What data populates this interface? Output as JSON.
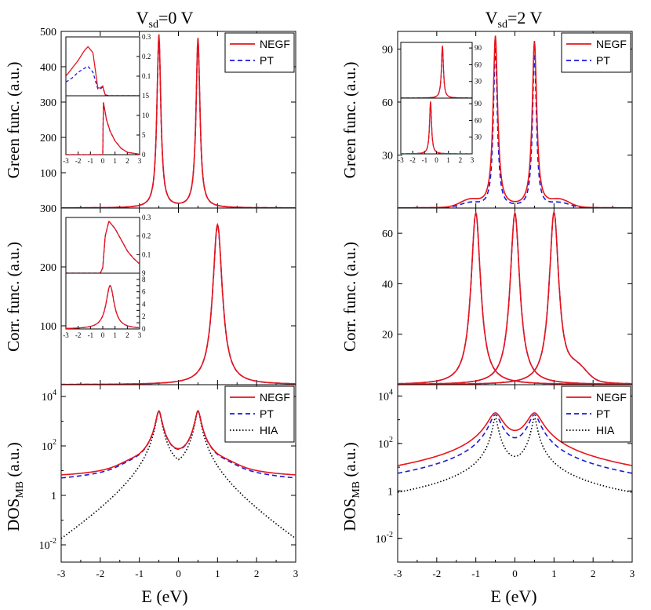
{
  "column_titles": [
    {
      "main": "V",
      "sub": "sd",
      "rest": "=0 V"
    },
    {
      "main": "V",
      "sub": "sd",
      "rest": "=2 V"
    }
  ],
  "xlabel": "E (eV)",
  "ylabels": {
    "green": "Green func. (a.u.)",
    "corr": "Corr. func. (a.u.)",
    "dos_main": "DOS",
    "dos_sub": "MB",
    "dos_rest": " (a.u.)"
  },
  "colors": {
    "NEGF": "#e8141b",
    "PT": "#1a1adb",
    "HIA": "#000000"
  },
  "chart_data": [
    {
      "id": "green-vsd0",
      "type": "line",
      "xlim": [
        -3,
        3
      ],
      "ylim": [
        0,
        500
      ],
      "xticks": [
        -3,
        -2,
        -1,
        0,
        1,
        2,
        3
      ],
      "yticks": [
        100,
        200,
        300,
        400,
        500
      ],
      "legend": [
        "NEGF",
        "PT"
      ],
      "legend_position": "top-right",
      "series": [
        {
          "name": "NEGF",
          "peaks": [
            {
              "x0": -0.5,
              "gamma": 0.06,
              "amp": 490
            },
            {
              "x0": 0.5,
              "gamma": 0.06,
              "amp": 480
            }
          ]
        },
        {
          "name": "PT",
          "peaks": [
            {
              "x0": -0.5,
              "gamma": 0.06,
              "amp": 485
            },
            {
              "x0": 0.5,
              "gamma": 0.06,
              "amp": 476
            }
          ]
        }
      ],
      "insets": [
        {
          "position": "top",
          "xlim": [
            -3,
            3
          ],
          "ylim": [
            0,
            0.3
          ],
          "yticks": [
            0.1,
            0.2,
            0.3
          ],
          "yticklabels": [
            "0.1",
            "0.2",
            "0.3"
          ],
          "series": [
            {
              "name": "NEGF",
              "x": [
                -3,
                -2.5,
                -2,
                -1.5,
                -1.2,
                -0.8,
                -0.4,
                -0.2,
                0,
                0.2,
                0.5,
                1,
                2,
                3
              ],
              "y": [
                0.1,
                0.14,
                0.18,
                0.23,
                0.25,
                0.22,
                0.04,
                0.04,
                0.05,
                0.005,
                0,
                0,
                0,
                0
              ]
            },
            {
              "name": "PT",
              "x": [
                -3,
                -2.5,
                -2,
                -1.5,
                -1.2,
                -0.8,
                -0.4,
                -0.2,
                0,
                0.2,
                0.5,
                1,
                2,
                3
              ],
              "y": [
                0.07,
                0.09,
                0.12,
                0.14,
                0.15,
                0.12,
                0.035,
                0.035,
                0.045,
                0.005,
                0,
                0,
                0,
                0
              ]
            }
          ]
        },
        {
          "position": "bottom",
          "xlim": [
            -3,
            3
          ],
          "ylim": [
            0,
            15
          ],
          "yticks": [
            0,
            5,
            10,
            15
          ],
          "yticklabels": [
            "0",
            "5",
            "10",
            "15"
          ],
          "xticks": [
            -3,
            -2,
            -1,
            0,
            1,
            2,
            3
          ],
          "xticklabels": [
            "-3",
            "-2",
            "-1",
            "0",
            "1",
            "2",
            "3"
          ],
          "series": [
            {
              "name": "NEGF",
              "x": [
                -3,
                -0.1,
                0,
                0.05,
                0.3,
                0.6,
                1,
                1.5,
                2,
                3
              ],
              "y": [
                0,
                0,
                0,
                13.5,
                9,
                6,
                3.5,
                1.6,
                0.6,
                0.1
              ]
            },
            {
              "name": "PT",
              "x": [
                -3,
                -0.1,
                0,
                0.05,
                0.3,
                0.6,
                1,
                1.5,
                2,
                3
              ],
              "y": [
                0,
                0,
                0,
                13.4,
                8.9,
                5.9,
                3.5,
                1.6,
                0.6,
                0.1
              ]
            }
          ]
        }
      ]
    },
    {
      "id": "green-vsd2",
      "type": "line",
      "xlim": [
        -3,
        3
      ],
      "ylim": [
        0,
        100
      ],
      "xticks": [
        -3,
        -2,
        -1,
        0,
        1,
        2,
        3
      ],
      "yticks": [
        30,
        60,
        90
      ],
      "legend": [
        "NEGF",
        "PT"
      ],
      "legend_position": "top-right",
      "series": [
        {
          "name": "NEGF",
          "peaks": [
            {
              "x0": -0.5,
              "gamma": 0.07,
              "amp": 97
            },
            {
              "x0": 0.5,
              "gamma": 0.07,
              "amp": 94
            }
          ],
          "shoulders": [
            {
              "x0": -1.15,
              "w": 0.35,
              "amp": 4
            },
            {
              "x0": 1.15,
              "w": 0.35,
              "amp": 4
            }
          ]
        },
        {
          "name": "PT",
          "peaks": [
            {
              "x0": -0.5,
              "gamma": 0.06,
              "amp": 91
            },
            {
              "x0": 0.5,
              "gamma": 0.06,
              "amp": 87
            }
          ],
          "shoulders": [
            {
              "x0": -1.15,
              "w": 0.35,
              "amp": 2.5
            },
            {
              "x0": 1.15,
              "w": 0.35,
              "amp": 2.5
            }
          ]
        }
      ],
      "insets": [
        {
          "position": "top",
          "xlim": [
            -3,
            3
          ],
          "ylim": [
            0,
            100
          ],
          "yticks": [
            30,
            60,
            90
          ],
          "yticklabels": [
            "30",
            "60",
            "90"
          ],
          "series": [
            {
              "name": "NEGF",
              "peaks": [
                {
                  "x0": 0.5,
                  "gamma": 0.1,
                  "amp": 95
                }
              ]
            },
            {
              "name": "PT",
              "peaks": [
                {
                  "x0": 0.5,
                  "gamma": 0.1,
                  "amp": 93
                }
              ]
            }
          ]
        },
        {
          "position": "bottom",
          "xlim": [
            -3,
            3
          ],
          "ylim": [
            0,
            100
          ],
          "yticks": [
            30,
            60,
            90
          ],
          "yticklabels": [
            "30",
            "60",
            "90"
          ],
          "xticks": [
            -3,
            -2,
            -1,
            0,
            1,
            2,
            3
          ],
          "xticklabels": [
            "-3",
            "-2",
            "-1",
            "0",
            "1",
            "2",
            "3"
          ],
          "series": [
            {
              "name": "NEGF",
              "peaks": [
                {
                  "x0": -0.5,
                  "gamma": 0.1,
                  "amp": 95
                }
              ]
            },
            {
              "name": "PT",
              "peaks": [
                {
                  "x0": -0.5,
                  "gamma": 0.1,
                  "amp": 93
                }
              ]
            }
          ]
        }
      ]
    },
    {
      "id": "corr-vsd0",
      "type": "line",
      "xlim": [
        -3,
        3
      ],
      "ylim": [
        0,
        300
      ],
      "xticks": [
        -3,
        -2,
        -1,
        0,
        1,
        2,
        3
      ],
      "yticks": [
        100,
        200,
        300
      ],
      "series": [
        {
          "name": "NEGF",
          "peaks": [
            {
              "x0": 1.0,
              "gamma": 0.15,
              "amp": 272
            }
          ]
        },
        {
          "name": "PT",
          "peaks": [
            {
              "x0": 1.0,
              "gamma": 0.15,
              "amp": 270
            }
          ]
        }
      ],
      "insets": [
        {
          "position": "top",
          "xlim": [
            -3,
            3
          ],
          "ylim": [
            0,
            0.3
          ],
          "yticks": [
            0.1,
            0.2,
            0.3
          ],
          "yticklabels": [
            "0.1",
            "0.2",
            "0.3"
          ],
          "series": [
            {
              "name": "NEGF",
              "x": [
                -3,
                -0.2,
                0,
                0.2,
                0.5,
                1,
                1.5,
                2,
                2.5,
                3
              ],
              "y": [
                0,
                0,
                0.03,
                0.2,
                0.28,
                0.24,
                0.18,
                0.12,
                0.08,
                0.05
              ]
            },
            {
              "name": "PT",
              "x": [
                -3,
                -0.2,
                0,
                0.2,
                0.5,
                1,
                1.5,
                2,
                2.5,
                3
              ],
              "y": [
                0,
                0,
                0.03,
                0.2,
                0.28,
                0.24,
                0.18,
                0.12,
                0.08,
                0.05
              ]
            }
          ]
        },
        {
          "position": "bottom",
          "xlim": [
            -3,
            3
          ],
          "ylim": [
            0,
            9
          ],
          "yticks": [
            0,
            1,
            2,
            3,
            4,
            5,
            6,
            7,
            8,
            9
          ],
          "yticklabels": [
            "0",
            "",
            "2",
            "",
            "4",
            "",
            "6",
            "",
            "8",
            "9"
          ],
          "xticks": [
            -3,
            -2,
            -1,
            0,
            1,
            2,
            3
          ],
          "xticklabels": [
            "-3",
            "-2",
            "-1",
            "0",
            "1",
            "2",
            "3"
          ],
          "series": [
            {
              "name": "NEGF",
              "peaks": [
                {
                  "x0": 0.6,
                  "gamma": 0.4,
                  "amp": 7
                }
              ]
            },
            {
              "name": "PT",
              "peaks": [
                {
                  "x0": 0.6,
                  "gamma": 0.4,
                  "amp": 7
                }
              ]
            }
          ]
        }
      ]
    },
    {
      "id": "corr-vsd2",
      "type": "line",
      "xlim": [
        -3,
        3
      ],
      "ylim": [
        0,
        70
      ],
      "xticks": [
        -3,
        -2,
        -1,
        0,
        1,
        2,
        3
      ],
      "yticks": [
        20,
        40,
        60
      ],
      "series": [
        {
          "name": "NEGF",
          "peaks_sets": [
            [
              {
                "x0": -1.0,
                "gamma": 0.15,
                "amp": 68
              }
            ],
            [
              {
                "x0": 0.0,
                "gamma": 0.15,
                "amp": 68
              }
            ],
            [
              {
                "x0": 1.0,
                "gamma": 0.15,
                "amp": 68
              }
            ]
          ],
          "shoulders": [
            {
              "x0": 1.6,
              "w": 0.35,
              "amp": 5
            }
          ]
        },
        {
          "name": "PT",
          "peaks_sets": [
            [
              {
                "x0": -1.0,
                "gamma": 0.15,
                "amp": 68
              }
            ],
            [
              {
                "x0": 0.0,
                "gamma": 0.15,
                "amp": 68
              }
            ],
            [
              {
                "x0": 1.0,
                "gamma": 0.15,
                "amp": 68
              }
            ]
          ],
          "shoulders": [
            {
              "x0": 1.6,
              "w": 0.35,
              "amp": 5
            }
          ]
        }
      ]
    },
    {
      "id": "dos-vsd0",
      "type": "line",
      "yscale": "log",
      "xlim": [
        -3,
        3
      ],
      "ylim": [
        0.002,
        30000
      ],
      "xticks": [
        -3,
        -2,
        -1,
        0,
        1,
        2,
        3
      ],
      "xticklabels": [
        "-3",
        "-2",
        "-1",
        "0",
        "1",
        "2",
        "3"
      ],
      "yticks": [
        0.01,
        1,
        100,
        10000
      ],
      "legend": [
        "NEGF",
        "PT",
        "HIA"
      ],
      "legend_position": "top-right",
      "series": [
        {
          "name": "NEGF",
          "peaks": [
            {
              "x0": -0.5,
              "gamma": 0.06,
              "amp": 2600
            },
            {
              "x0": 0.5,
              "gamma": 0.06,
              "amp": 2600
            }
          ],
          "tail": 0.55,
          "shoulders": [
            {
              "x0": -1.1,
              "w": 0.4,
              "amp": 5
            },
            {
              "x0": 1.1,
              "w": 0.4,
              "amp": 5
            }
          ]
        },
        {
          "name": "PT",
          "peaks": [
            {
              "x0": -0.5,
              "gamma": 0.06,
              "amp": 2600
            },
            {
              "x0": 0.5,
              "gamma": 0.06,
              "amp": 2600
            }
          ],
          "tail": 0.5,
          "shoulders": [
            {
              "x0": -1.1,
              "w": 0.4,
              "amp": 4.5
            },
            {
              "x0": 1.1,
              "w": 0.4,
              "amp": 4.5
            }
          ]
        },
        {
          "name": "HIA",
          "peaks": [
            {
              "x0": -0.5,
              "gamma": 0.06,
              "amp": 2600
            },
            {
              "x0": 0.5,
              "gamma": 0.06,
              "amp": 2600
            }
          ],
          "tail": 0.1
        }
      ]
    },
    {
      "id": "dos-vsd2",
      "type": "line",
      "yscale": "log",
      "xlim": [
        -3,
        3
      ],
      "ylim": [
        0.001,
        30000
      ],
      "xticks": [
        -3,
        -2,
        -1,
        0,
        1,
        2,
        3
      ],
      "xticklabels": [
        "-3",
        "-2",
        "-1",
        "0",
        "1",
        "2",
        "3"
      ],
      "yticks": [
        0.01,
        1,
        100,
        10000
      ],
      "legend": [
        "NEGF",
        "PT",
        "HIA"
      ],
      "legend_position": "top-right",
      "series": [
        {
          "name": "NEGF",
          "peaks": [
            {
              "x0": -0.5,
              "gamma": 0.16,
              "amp": 1900
            },
            {
              "x0": 0.5,
              "gamma": 0.16,
              "amp": 1900
            }
          ]
        },
        {
          "name": "PT",
          "peaks": [
            {
              "x0": -0.5,
              "gamma": 0.12,
              "amp": 1600
            },
            {
              "x0": 0.5,
              "gamma": 0.12,
              "amp": 1600
            }
          ]
        },
        {
          "name": "HIA",
          "peaks": [
            {
              "x0": -0.5,
              "gamma": 0.055,
              "amp": 1200
            },
            {
              "x0": 0.5,
              "gamma": 0.055,
              "amp": 1200
            }
          ]
        }
      ]
    }
  ]
}
